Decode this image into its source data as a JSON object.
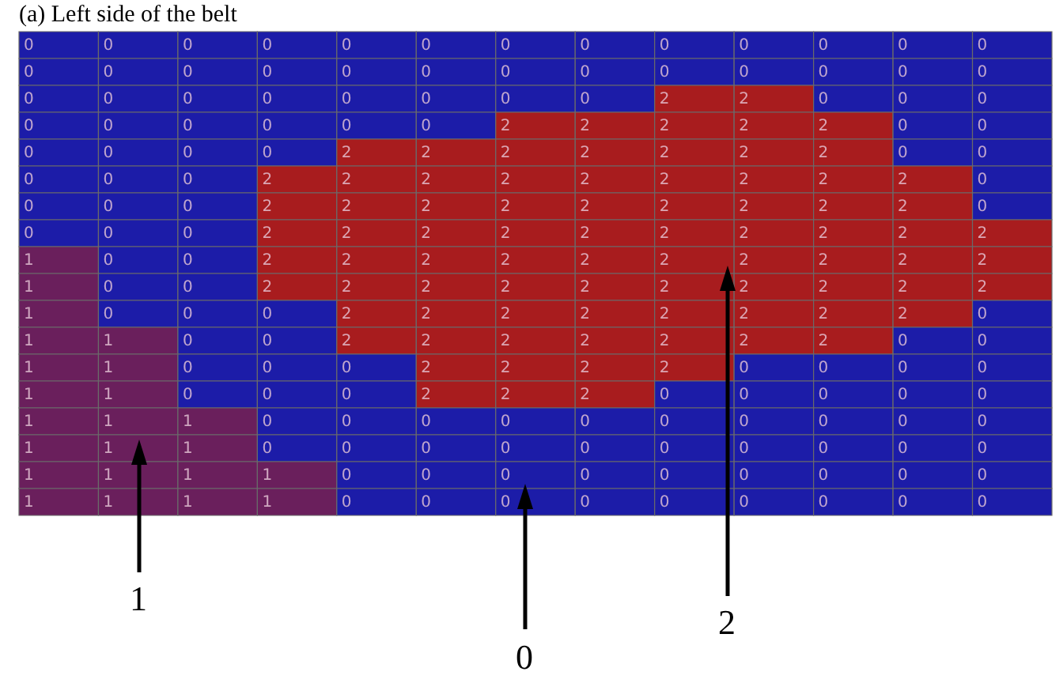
{
  "chart_data": {
    "type": "heatmap",
    "title": "(a) Left side of the belt",
    "categories": [
      null,
      null,
      null,
      null,
      null,
      null,
      null,
      null,
      null,
      null,
      null,
      null,
      null
    ],
    "y_categories": [
      null,
      null,
      null,
      null,
      null,
      null,
      null,
      null,
      null,
      null,
      null,
      null,
      null,
      null,
      null,
      null,
      null,
      null
    ],
    "cells": [
      [
        0,
        0,
        0,
        0,
        0,
        0,
        0,
        0,
        0,
        0,
        0,
        0,
        0
      ],
      [
        0,
        0,
        0,
        0,
        0,
        0,
        0,
        0,
        0,
        0,
        0,
        0,
        0
      ],
      [
        0,
        0,
        0,
        0,
        0,
        0,
        0,
        0,
        2,
        2,
        0,
        0,
        0
      ],
      [
        0,
        0,
        0,
        0,
        0,
        0,
        2,
        2,
        2,
        2,
        2,
        0,
        0
      ],
      [
        0,
        0,
        0,
        0,
        2,
        2,
        2,
        2,
        2,
        2,
        2,
        0,
        0
      ],
      [
        0,
        0,
        0,
        2,
        2,
        2,
        2,
        2,
        2,
        2,
        2,
        2,
        0
      ],
      [
        0,
        0,
        0,
        2,
        2,
        2,
        2,
        2,
        2,
        2,
        2,
        2,
        0
      ],
      [
        0,
        0,
        0,
        2,
        2,
        2,
        2,
        2,
        2,
        2,
        2,
        2,
        2
      ],
      [
        1,
        0,
        0,
        2,
        2,
        2,
        2,
        2,
        2,
        2,
        2,
        2,
        2
      ],
      [
        1,
        0,
        0,
        2,
        2,
        2,
        2,
        2,
        2,
        2,
        2,
        2,
        2
      ],
      [
        1,
        0,
        0,
        0,
        2,
        2,
        2,
        2,
        2,
        2,
        2,
        2,
        0
      ],
      [
        1,
        1,
        0,
        0,
        2,
        2,
        2,
        2,
        2,
        2,
        2,
        0,
        0
      ],
      [
        1,
        1,
        0,
        0,
        0,
        2,
        2,
        2,
        2,
        0,
        0,
        0,
        0
      ],
      [
        1,
        1,
        0,
        0,
        0,
        2,
        2,
        2,
        0,
        0,
        0,
        0,
        0
      ],
      [
        1,
        1,
        1,
        0,
        0,
        0,
        0,
        0,
        0,
        0,
        0,
        0,
        0
      ],
      [
        1,
        1,
        1,
        0,
        0,
        0,
        0,
        0,
        0,
        0,
        0,
        0,
        0
      ],
      [
        1,
        1,
        1,
        1,
        0,
        0,
        0,
        0,
        0,
        0,
        0,
        0,
        0
      ],
      [
        1,
        1,
        1,
        1,
        0,
        0,
        0,
        0,
        0,
        0,
        0,
        0,
        0
      ]
    ],
    "colors": [
      "#1c1ca8",
      "#6a1f5c",
      "#a81c1e"
    ],
    "data_labels": true,
    "annotations": [
      "1",
      "0",
      "2"
    ]
  }
}
